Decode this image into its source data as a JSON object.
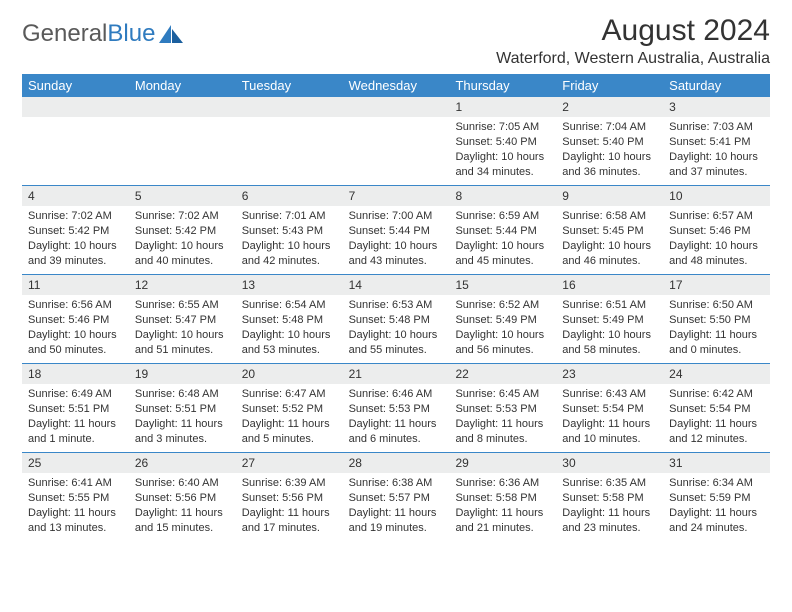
{
  "logo": {
    "text1": "General",
    "text2": "Blue"
  },
  "title": "August 2024",
  "subtitle": "Waterford, Western Australia, Australia",
  "dayNames": [
    "Sunday",
    "Monday",
    "Tuesday",
    "Wednesday",
    "Thursday",
    "Friday",
    "Saturday"
  ],
  "colors": {
    "headerBar": "#3a87c8",
    "cellNumBg": "#eceded",
    "weekDivider": "#3a87c8",
    "logoGray": "#5a5a5a",
    "logoBlue": "#2f7bbf"
  },
  "weeks": [
    [
      {
        "n": "",
        "sunrise": "",
        "sunset": "",
        "daylight": ""
      },
      {
        "n": "",
        "sunrise": "",
        "sunset": "",
        "daylight": ""
      },
      {
        "n": "",
        "sunrise": "",
        "sunset": "",
        "daylight": ""
      },
      {
        "n": "",
        "sunrise": "",
        "sunset": "",
        "daylight": ""
      },
      {
        "n": "1",
        "sunrise": "Sunrise: 7:05 AM",
        "sunset": "Sunset: 5:40 PM",
        "daylight": "Daylight: 10 hours and 34 minutes."
      },
      {
        "n": "2",
        "sunrise": "Sunrise: 7:04 AM",
        "sunset": "Sunset: 5:40 PM",
        "daylight": "Daylight: 10 hours and 36 minutes."
      },
      {
        "n": "3",
        "sunrise": "Sunrise: 7:03 AM",
        "sunset": "Sunset: 5:41 PM",
        "daylight": "Daylight: 10 hours and 37 minutes."
      }
    ],
    [
      {
        "n": "4",
        "sunrise": "Sunrise: 7:02 AM",
        "sunset": "Sunset: 5:42 PM",
        "daylight": "Daylight: 10 hours and 39 minutes."
      },
      {
        "n": "5",
        "sunrise": "Sunrise: 7:02 AM",
        "sunset": "Sunset: 5:42 PM",
        "daylight": "Daylight: 10 hours and 40 minutes."
      },
      {
        "n": "6",
        "sunrise": "Sunrise: 7:01 AM",
        "sunset": "Sunset: 5:43 PM",
        "daylight": "Daylight: 10 hours and 42 minutes."
      },
      {
        "n": "7",
        "sunrise": "Sunrise: 7:00 AM",
        "sunset": "Sunset: 5:44 PM",
        "daylight": "Daylight: 10 hours and 43 minutes."
      },
      {
        "n": "8",
        "sunrise": "Sunrise: 6:59 AM",
        "sunset": "Sunset: 5:44 PM",
        "daylight": "Daylight: 10 hours and 45 minutes."
      },
      {
        "n": "9",
        "sunrise": "Sunrise: 6:58 AM",
        "sunset": "Sunset: 5:45 PM",
        "daylight": "Daylight: 10 hours and 46 minutes."
      },
      {
        "n": "10",
        "sunrise": "Sunrise: 6:57 AM",
        "sunset": "Sunset: 5:46 PM",
        "daylight": "Daylight: 10 hours and 48 minutes."
      }
    ],
    [
      {
        "n": "11",
        "sunrise": "Sunrise: 6:56 AM",
        "sunset": "Sunset: 5:46 PM",
        "daylight": "Daylight: 10 hours and 50 minutes."
      },
      {
        "n": "12",
        "sunrise": "Sunrise: 6:55 AM",
        "sunset": "Sunset: 5:47 PM",
        "daylight": "Daylight: 10 hours and 51 minutes."
      },
      {
        "n": "13",
        "sunrise": "Sunrise: 6:54 AM",
        "sunset": "Sunset: 5:48 PM",
        "daylight": "Daylight: 10 hours and 53 minutes."
      },
      {
        "n": "14",
        "sunrise": "Sunrise: 6:53 AM",
        "sunset": "Sunset: 5:48 PM",
        "daylight": "Daylight: 10 hours and 55 minutes."
      },
      {
        "n": "15",
        "sunrise": "Sunrise: 6:52 AM",
        "sunset": "Sunset: 5:49 PM",
        "daylight": "Daylight: 10 hours and 56 minutes."
      },
      {
        "n": "16",
        "sunrise": "Sunrise: 6:51 AM",
        "sunset": "Sunset: 5:49 PM",
        "daylight": "Daylight: 10 hours and 58 minutes."
      },
      {
        "n": "17",
        "sunrise": "Sunrise: 6:50 AM",
        "sunset": "Sunset: 5:50 PM",
        "daylight": "Daylight: 11 hours and 0 minutes."
      }
    ],
    [
      {
        "n": "18",
        "sunrise": "Sunrise: 6:49 AM",
        "sunset": "Sunset: 5:51 PM",
        "daylight": "Daylight: 11 hours and 1 minute."
      },
      {
        "n": "19",
        "sunrise": "Sunrise: 6:48 AM",
        "sunset": "Sunset: 5:51 PM",
        "daylight": "Daylight: 11 hours and 3 minutes."
      },
      {
        "n": "20",
        "sunrise": "Sunrise: 6:47 AM",
        "sunset": "Sunset: 5:52 PM",
        "daylight": "Daylight: 11 hours and 5 minutes."
      },
      {
        "n": "21",
        "sunrise": "Sunrise: 6:46 AM",
        "sunset": "Sunset: 5:53 PM",
        "daylight": "Daylight: 11 hours and 6 minutes."
      },
      {
        "n": "22",
        "sunrise": "Sunrise: 6:45 AM",
        "sunset": "Sunset: 5:53 PM",
        "daylight": "Daylight: 11 hours and 8 minutes."
      },
      {
        "n": "23",
        "sunrise": "Sunrise: 6:43 AM",
        "sunset": "Sunset: 5:54 PM",
        "daylight": "Daylight: 11 hours and 10 minutes."
      },
      {
        "n": "24",
        "sunrise": "Sunrise: 6:42 AM",
        "sunset": "Sunset: 5:54 PM",
        "daylight": "Daylight: 11 hours and 12 minutes."
      }
    ],
    [
      {
        "n": "25",
        "sunrise": "Sunrise: 6:41 AM",
        "sunset": "Sunset: 5:55 PM",
        "daylight": "Daylight: 11 hours and 13 minutes."
      },
      {
        "n": "26",
        "sunrise": "Sunrise: 6:40 AM",
        "sunset": "Sunset: 5:56 PM",
        "daylight": "Daylight: 11 hours and 15 minutes."
      },
      {
        "n": "27",
        "sunrise": "Sunrise: 6:39 AM",
        "sunset": "Sunset: 5:56 PM",
        "daylight": "Daylight: 11 hours and 17 minutes."
      },
      {
        "n": "28",
        "sunrise": "Sunrise: 6:38 AM",
        "sunset": "Sunset: 5:57 PM",
        "daylight": "Daylight: 11 hours and 19 minutes."
      },
      {
        "n": "29",
        "sunrise": "Sunrise: 6:36 AM",
        "sunset": "Sunset: 5:58 PM",
        "daylight": "Daylight: 11 hours and 21 minutes."
      },
      {
        "n": "30",
        "sunrise": "Sunrise: 6:35 AM",
        "sunset": "Sunset: 5:58 PM",
        "daylight": "Daylight: 11 hours and 23 minutes."
      },
      {
        "n": "31",
        "sunrise": "Sunrise: 6:34 AM",
        "sunset": "Sunset: 5:59 PM",
        "daylight": "Daylight: 11 hours and 24 minutes."
      }
    ]
  ]
}
